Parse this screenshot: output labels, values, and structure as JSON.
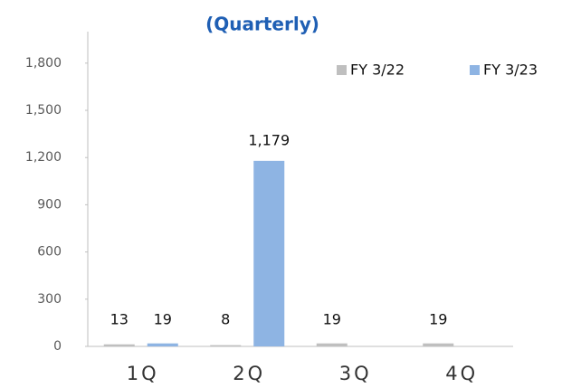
{
  "chart_data": {
    "type": "bar",
    "title": "(Quarterly)",
    "categories": [
      "1Q",
      "2Q",
      "3Q",
      "4Q"
    ],
    "series": [
      {
        "name": "FY 3/22",
        "color": "#bfbfbf",
        "values": [
          13,
          8,
          19,
          19
        ]
      },
      {
        "name": "FY 3/23",
        "color": "#8eb4e3",
        "values": [
          19,
          1179,
          null,
          null
        ],
        "value_labels": [
          "19",
          "1,179",
          null,
          null
        ]
      }
    ],
    "ylim": [
      0,
      2000
    ],
    "yticks": [
      0,
      300,
      600,
      900,
      {
        "value": 1200,
        "label": "1,200"
      },
      {
        "value": 1500,
        "label": "1,500"
      },
      {
        "value": 1800,
        "label": "1,800"
      }
    ],
    "grid": false,
    "legend": "top-right"
  }
}
